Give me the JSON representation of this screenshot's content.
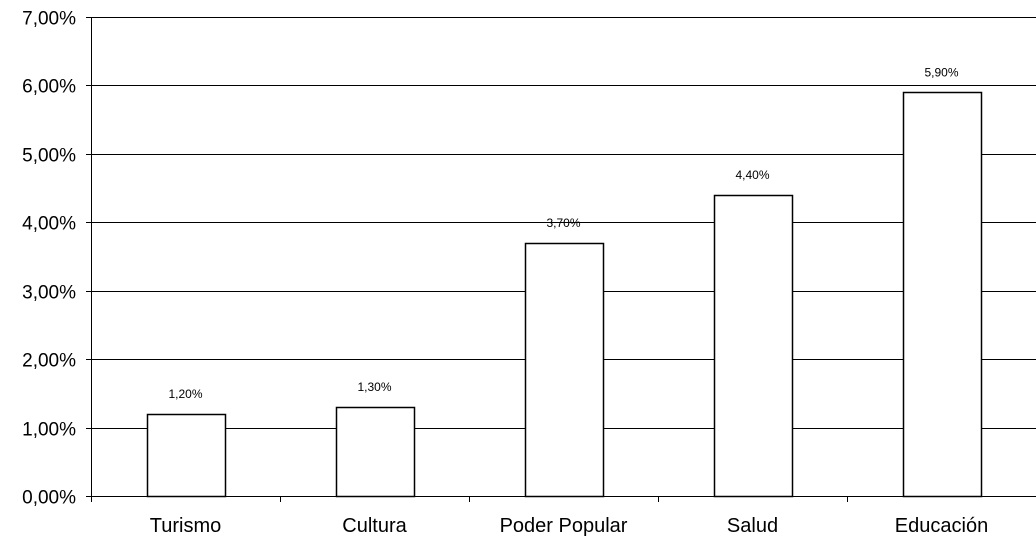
{
  "chart_data": {
    "type": "bar",
    "categories": [
      "Turismo",
      "Cultura",
      "Poder Popular",
      "Salud",
      "Educación"
    ],
    "values": [
      1.2,
      1.3,
      3.7,
      4.4,
      5.9
    ],
    "data_labels": [
      "1,20%",
      "1,30%",
      "3,70%",
      "4,40%",
      "5,90%"
    ],
    "ylim": [
      0,
      7
    ],
    "yticks": [
      0,
      1,
      2,
      3,
      4,
      5,
      6,
      7
    ],
    "ytick_labels": [
      "0,00%",
      "1,00%",
      "2,00%",
      "3,00%",
      "4,00%",
      "5,00%",
      "6,00%",
      "7,00%"
    ],
    "grid": true,
    "title": "",
    "xlabel": "",
    "ylabel": "",
    "colors": {
      "bar_fill": "#ffffff",
      "bar_stroke": "#000000",
      "grid": "#000000"
    }
  }
}
